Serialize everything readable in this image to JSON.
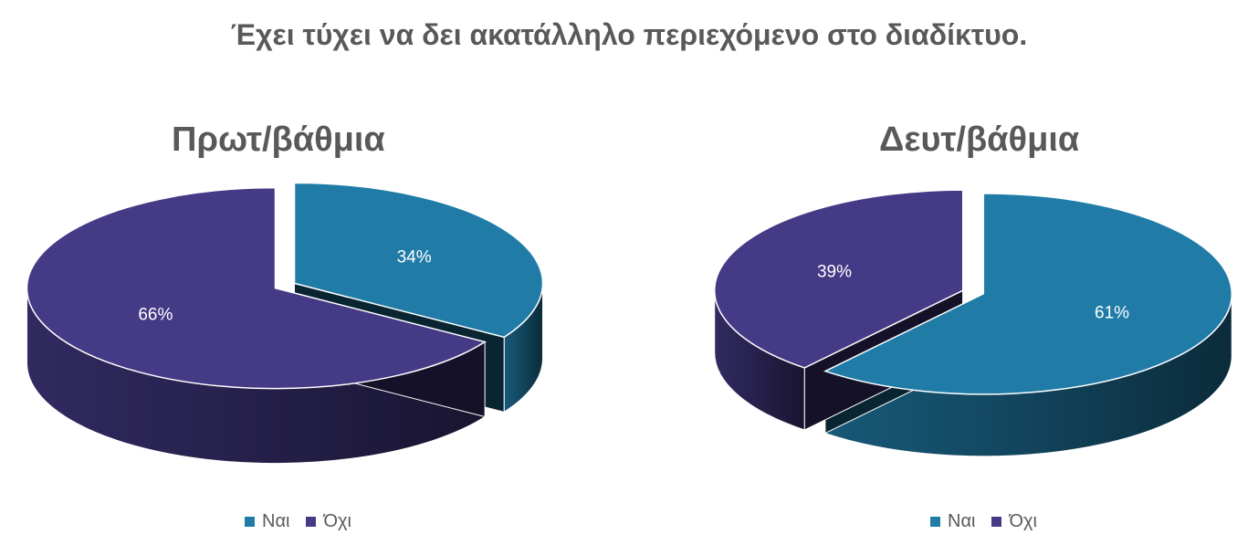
{
  "title": "Έχει τύχει να δει ακατάλληλο περιεχόμενο στο διαδίκτυο.",
  "colors": {
    "yes": "#207CA7",
    "no": "#443A86"
  },
  "legend": {
    "yes_label": "Ναι",
    "no_label": "Όχι"
  },
  "chart_data": [
    {
      "type": "pie",
      "title": "Πρωτ/βάθμια",
      "categories": [
        "Ναι",
        "Όχι"
      ],
      "values": [
        34,
        66
      ],
      "labels": [
        "34%",
        "66%"
      ],
      "style": "3d-exploded"
    },
    {
      "type": "pie",
      "title": "Δευτ/βάθμια",
      "categories": [
        "Ναι",
        "Όχι"
      ],
      "values": [
        61,
        39
      ],
      "labels": [
        "61%",
        "39%"
      ],
      "style": "3d-exploded"
    }
  ]
}
